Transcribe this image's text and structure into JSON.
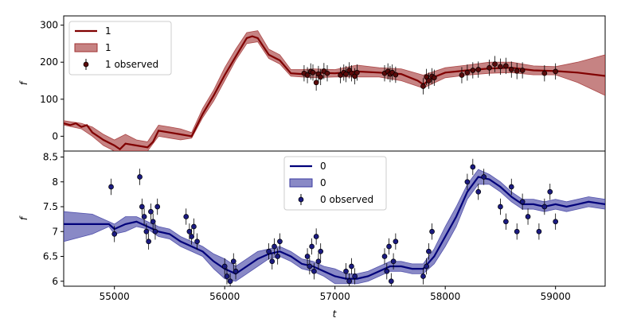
{
  "chart_data": [
    {
      "type": "line",
      "xlabel": "",
      "ylabel": "f",
      "xlim": [
        54540,
        59450
      ],
      "ylim": [
        -40,
        325
      ],
      "yticks": [
        0,
        100,
        200,
        300
      ],
      "grid": false,
      "legend_position": "upper-left",
      "line_color": "#800000",
      "band_color": "#a03030",
      "point_color": "#5a0a0a",
      "legend": [
        {
          "kind": "line",
          "label": "1"
        },
        {
          "kind": "band",
          "label": "1"
        },
        {
          "kind": "points",
          "label": "1 observed"
        }
      ],
      "series": [
        {
          "name": "1",
          "kind": "line",
          "x": [
            54540,
            54600,
            54650,
            54700,
            54750,
            54800,
            54900,
            55000,
            55050,
            55100,
            55200,
            55300,
            55350,
            55400,
            55500,
            55600,
            55700,
            55800,
            55900,
            56000,
            56100,
            56200,
            56250,
            56300,
            56400,
            56500,
            56600,
            56700,
            56800,
            57000,
            57200,
            57400,
            57600,
            57750,
            57800,
            57900,
            58000,
            58200,
            58400,
            58600,
            58800,
            59000,
            59200,
            59450
          ],
          "y": [
            35,
            30,
            35,
            25,
            30,
            10,
            -10,
            -25,
            -35,
            -20,
            -25,
            -30,
            -15,
            15,
            10,
            5,
            0,
            60,
            110,
            165,
            215,
            265,
            270,
            265,
            220,
            205,
            170,
            168,
            172,
            170,
            175,
            172,
            168,
            150,
            140,
            160,
            172,
            178,
            183,
            185,
            178,
            176,
            172,
            163
          ]
        },
        {
          "name": "1",
          "kind": "band",
          "x": [
            54540,
            54700,
            54800,
            54900,
            55000,
            55100,
            55200,
            55300,
            55400,
            55500,
            55600,
            55700,
            55800,
            55900,
            56000,
            56100,
            56200,
            56300,
            56400,
            56500,
            56600,
            56700,
            56800,
            57000,
            57200,
            57400,
            57600,
            57800,
            58000,
            58200,
            58400,
            58600,
            58800,
            59000,
            59200,
            59450
          ],
          "lower": [
            30,
            20,
            0,
            -25,
            -40,
            -40,
            -40,
            -40,
            0,
            -5,
            -10,
            -5,
            50,
            95,
            150,
            205,
            250,
            255,
            210,
            195,
            162,
            160,
            158,
            160,
            160,
            160,
            150,
            130,
            158,
            165,
            170,
            172,
            166,
            166,
            145,
            110
          ],
          "upper": [
            42,
            35,
            25,
            5,
            -10,
            5,
            -10,
            -15,
            30,
            25,
            20,
            10,
            75,
            125,
            185,
            235,
            280,
            285,
            235,
            220,
            180,
            180,
            182,
            180,
            192,
            185,
            182,
            165,
            185,
            192,
            200,
            200,
            190,
            188,
            200,
            220
          ]
        },
        {
          "name": "1 observed",
          "kind": "points",
          "x": [
            56720,
            56750,
            56780,
            56800,
            56830,
            56850,
            56870,
            56900,
            56930,
            57050,
            57080,
            57100,
            57130,
            57150,
            57180,
            57200,
            57450,
            57480,
            57500,
            57520,
            57550,
            57800,
            57830,
            57850,
            57880,
            57900,
            58150,
            58200,
            58250,
            58300,
            58400,
            58450,
            58500,
            58550,
            58600,
            58650,
            58700,
            58900,
            59000
          ],
          "y": [
            170,
            165,
            175,
            172,
            145,
            168,
            160,
            176,
            170,
            165,
            172,
            168,
            178,
            170,
            162,
            172,
            170,
            175,
            168,
            172,
            166,
            135,
            160,
            150,
            162,
            158,
            165,
            172,
            178,
            180,
            185,
            195,
            188,
            190,
            180,
            176,
            178,
            170,
            175
          ]
        }
      ]
    },
    {
      "type": "line",
      "xlabel": "t",
      "ylabel": "f",
      "xlim": [
        54540,
        59450
      ],
      "ylim": [
        5.9,
        8.62
      ],
      "xticks": [
        55000,
        56000,
        57000,
        58000,
        59000
      ],
      "yticks": [
        6.0,
        6.5,
        7.0,
        7.5,
        8.0,
        8.5
      ],
      "grid": false,
      "legend_position": "upper-center",
      "line_color": "#00007a",
      "band_color": "#3a3aa0",
      "point_color": "#1a1a80",
      "legend": [
        {
          "kind": "line",
          "label": "0"
        },
        {
          "kind": "band",
          "label": "0"
        },
        {
          "kind": "points",
          "label": "0 observed"
        }
      ],
      "series": [
        {
          "name": "0",
          "kind": "line",
          "x": [
            54540,
            54800,
            54950,
            55000,
            55100,
            55200,
            55300,
            55400,
            55500,
            55600,
            55700,
            55800,
            55900,
            56000,
            56100,
            56200,
            56300,
            56400,
            56500,
            56600,
            56700,
            56800,
            56900,
            57000,
            57100,
            57200,
            57300,
            57400,
            57500,
            57600,
            57700,
            57800,
            57900,
            58000,
            58100,
            58200,
            58300,
            58400,
            58500,
            58600,
            58700,
            58800,
            58900,
            59000,
            59100,
            59200,
            59300,
            59450
          ],
          "y": [
            7.15,
            7.15,
            7.15,
            7.05,
            7.15,
            7.2,
            7.1,
            7.0,
            6.95,
            6.8,
            6.7,
            6.6,
            6.4,
            6.25,
            6.15,
            6.3,
            6.45,
            6.55,
            6.6,
            6.5,
            6.35,
            6.3,
            6.2,
            6.1,
            6.05,
            6.05,
            6.1,
            6.2,
            6.3,
            6.3,
            6.25,
            6.25,
            6.5,
            6.9,
            7.3,
            7.8,
            8.1,
            8.05,
            7.9,
            7.7,
            7.55,
            7.55,
            7.5,
            7.55,
            7.5,
            7.55,
            7.6,
            7.55
          ]
        },
        {
          "name": "0",
          "kind": "band",
          "x": [
            54540,
            54800,
            54950,
            55000,
            55100,
            55200,
            55300,
            55400,
            55500,
            55600,
            55700,
            55800,
            55900,
            56000,
            56100,
            56200,
            56300,
            56400,
            56500,
            56600,
            56700,
            56800,
            56900,
            57000,
            57100,
            57200,
            57300,
            57400,
            57500,
            57600,
            57700,
            57800,
            57900,
            58000,
            58100,
            58200,
            58300,
            58400,
            58500,
            58600,
            58700,
            58800,
            58900,
            59000,
            59100,
            59200,
            59300,
            59450
          ],
          "lower": [
            6.8,
            6.95,
            7.1,
            6.95,
            7.0,
            7.1,
            7.05,
            6.9,
            6.85,
            6.7,
            6.6,
            6.5,
            6.25,
            6.05,
            6.0,
            6.15,
            6.3,
            6.45,
            6.5,
            6.4,
            6.25,
            6.2,
            6.1,
            5.95,
            5.95,
            5.95,
            6.0,
            6.1,
            6.2,
            6.2,
            6.15,
            6.15,
            6.35,
            6.7,
            7.1,
            7.65,
            7.95,
            7.95,
            7.8,
            7.6,
            7.45,
            7.45,
            7.4,
            7.45,
            7.4,
            7.45,
            7.5,
            7.45
          ],
          "upper": [
            7.4,
            7.35,
            7.2,
            7.15,
            7.3,
            7.3,
            7.2,
            7.1,
            7.05,
            6.9,
            6.8,
            6.7,
            6.55,
            6.45,
            6.3,
            6.45,
            6.6,
            6.65,
            6.7,
            6.6,
            6.45,
            6.4,
            6.3,
            6.25,
            6.15,
            6.15,
            6.2,
            6.3,
            6.4,
            6.4,
            6.35,
            6.35,
            6.65,
            7.1,
            7.5,
            7.95,
            8.25,
            8.15,
            8.0,
            7.8,
            7.65,
            7.65,
            7.6,
            7.65,
            7.6,
            7.65,
            7.7,
            7.65
          ]
        },
        {
          "name": "0 observed",
          "kind": "points",
          "x": [
            54970,
            55000,
            55230,
            55250,
            55270,
            55290,
            55310,
            55330,
            55350,
            55370,
            55390,
            55650,
            55680,
            55700,
            55720,
            55750,
            56000,
            56020,
            56050,
            56080,
            56100,
            56400,
            56430,
            56450,
            56480,
            56500,
            56750,
            56770,
            56790,
            56810,
            56830,
            56850,
            56870,
            57100,
            57130,
            57150,
            57180,
            57450,
            57470,
            57490,
            57510,
            57530,
            57550,
            57800,
            57830,
            57850,
            57880,
            58200,
            58250,
            58300,
            58350,
            58500,
            58550,
            58600,
            58650,
            58700,
            58750,
            58850,
            58900,
            58950,
            59000
          ],
          "y": [
            7.9,
            6.95,
            8.1,
            7.5,
            7.3,
            7.0,
            6.8,
            7.4,
            7.2,
            7.0,
            7.5,
            7.3,
            7.0,
            6.9,
            7.1,
            6.8,
            6.3,
            6.1,
            6.0,
            6.4,
            6.2,
            6.6,
            6.4,
            6.7,
            6.5,
            6.8,
            6.5,
            6.3,
            6.7,
            6.2,
            6.9,
            6.4,
            6.6,
            6.2,
            6.0,
            6.3,
            6.1,
            6.5,
            6.2,
            6.7,
            6.0,
            6.4,
            6.8,
            6.1,
            6.3,
            6.6,
            7.0,
            8.0,
            8.3,
            7.8,
            8.1,
            7.5,
            7.2,
            7.9,
            7.0,
            7.6,
            7.3,
            7.0,
            7.5,
            7.8,
            7.2
          ]
        }
      ]
    }
  ]
}
